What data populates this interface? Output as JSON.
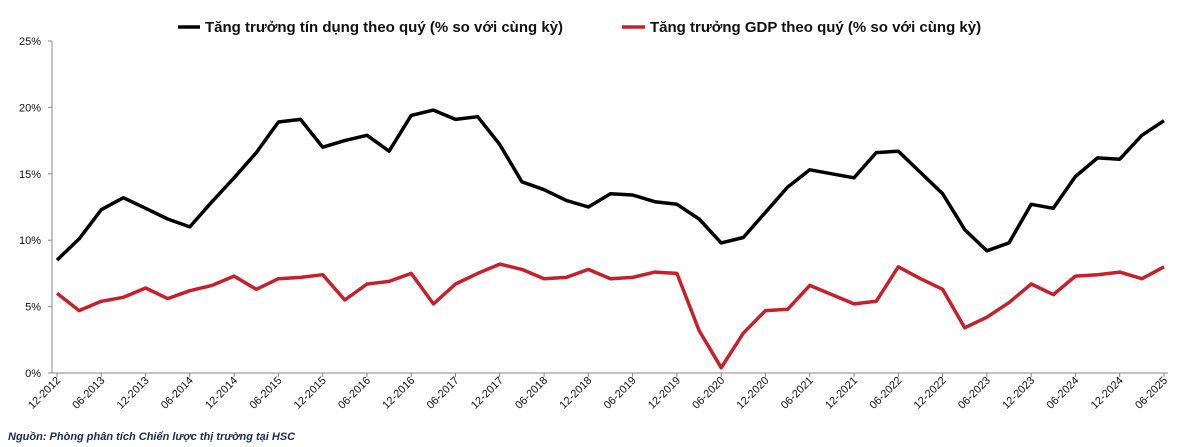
{
  "chart_data": {
    "type": "line",
    "title": "",
    "xlabel": "",
    "ylabel": "",
    "ylim": [
      0,
      25
    ],
    "yticks": [
      "0%",
      "5%",
      "10%",
      "15%",
      "20%",
      "25%"
    ],
    "grid": false,
    "legend_position": "top",
    "xtick_labels": [
      "12-2012",
      "06-2013",
      "12-2013",
      "06-2014",
      "12-2014",
      "06-2015",
      "12-2015",
      "06-2016",
      "12-2016",
      "06-2017",
      "12-2017",
      "06-2018",
      "12-2018",
      "06-2019",
      "12-2019",
      "06-2020",
      "12-2020",
      "06-2021",
      "12-2021",
      "06-2022",
      "12-2022",
      "06-2023",
      "12-2023",
      "06-2024",
      "12-2024",
      "06-2025"
    ],
    "series": [
      {
        "name": "Tăng trưởng tín dụng theo quý (% so với cùng kỳ)",
        "color": "#000000",
        "values": [
          8.5,
          10.1,
          12.3,
          13.2,
          12.4,
          11.6,
          11.0,
          12.9,
          14.7,
          16.6,
          18.9,
          19.1,
          17.0,
          17.5,
          17.9,
          16.7,
          19.4,
          19.8,
          19.1,
          19.3,
          17.2,
          14.4,
          13.8,
          13.0,
          12.5,
          13.5,
          13.4,
          12.9,
          12.7,
          11.6,
          9.8,
          10.2,
          12.1,
          14.0,
          15.3,
          15.0,
          14.7,
          16.6,
          16.7,
          15.1,
          13.5,
          10.8,
          9.2,
          9.8,
          12.7,
          12.4,
          14.8,
          16.2,
          16.1,
          17.9,
          19.0
        ]
      },
      {
        "name": "Tăng trưởng GDP theo quý (% so với cùng kỳ)",
        "color": "#c8202a",
        "values": [
          6.0,
          4.7,
          5.4,
          5.7,
          6.4,
          5.6,
          6.2,
          6.6,
          7.3,
          6.3,
          7.1,
          7.2,
          7.4,
          5.5,
          6.7,
          6.9,
          7.5,
          5.2,
          6.7,
          7.5,
          8.2,
          7.8,
          7.1,
          7.2,
          7.8,
          7.1,
          7.2,
          7.6,
          7.5,
          3.2,
          0.4,
          3.0,
          4.7,
          4.8,
          6.6,
          5.9,
          5.2,
          5.4,
          8.0,
          7.1,
          6.3,
          3.4,
          4.2,
          5.3,
          6.7,
          5.9,
          7.3,
          7.4,
          7.6,
          7.1,
          8.0
        ]
      }
    ]
  },
  "source": "Nguồn: Phòng phân tích Chiến lược thị trường tại HSC"
}
